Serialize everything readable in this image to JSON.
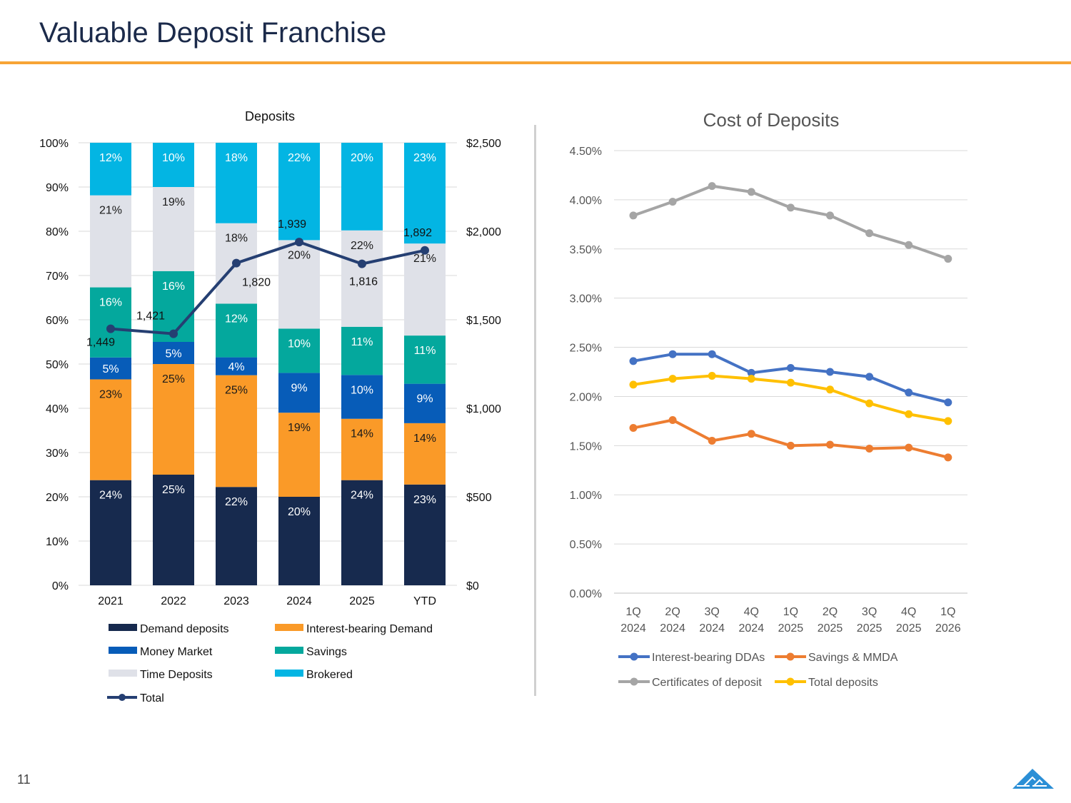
{
  "header": {
    "title": "Valuable Deposit Franchise",
    "page_number": "11"
  },
  "chart_data": [
    {
      "type": "bar",
      "stacked": "100%",
      "title": "Deposits",
      "categories": [
        "2021",
        "2022",
        "2023",
        "2024",
        "2025",
        "YTD"
      ],
      "y_left_ticks": [
        "0%",
        "10%",
        "20%",
        "30%",
        "40%",
        "50%",
        "60%",
        "70%",
        "80%",
        "90%",
        "100%"
      ],
      "y_right_ticks": [
        "$0",
        "$500",
        "$1,000",
        "$1,500",
        "$2,000",
        "$2,500"
      ],
      "ylim_left": [
        0,
        100
      ],
      "ylim_right": [
        0,
        2500
      ],
      "grid": true,
      "legend_position": "bottom",
      "series": [
        {
          "name": "Demand deposits",
          "color": "#172a4e",
          "label_color": "#ffffff",
          "values": [
            24,
            25,
            22,
            20,
            24,
            23
          ]
        },
        {
          "name": "Interest-bearing Demand",
          "color": "#fa9a28",
          "label_color": "#1a1a1a",
          "values": [
            23,
            25,
            25,
            19,
            14,
            14
          ]
        },
        {
          "name": "Money Market",
          "color": "#075cb8",
          "label_color": "#ffffff",
          "values": [
            5,
            5,
            4,
            9,
            10,
            9
          ]
        },
        {
          "name": "Savings",
          "color": "#04a89d",
          "label_color": "#ffffff",
          "values": [
            16,
            16,
            12,
            10,
            11,
            11
          ]
        },
        {
          "name": "Time Deposits",
          "color": "#dfe1e8",
          "label_color": "#1a1a1a",
          "values": [
            21,
            19,
            18,
            20,
            22,
            21
          ]
        },
        {
          "name": "Brokered",
          "color": "#03b5e3",
          "label_color": "#ffffff",
          "values": [
            12,
            10,
            18,
            22,
            20,
            23
          ]
        }
      ],
      "line": {
        "name": "Total",
        "color": "#253f72",
        "values": [
          1449,
          1421,
          1820,
          1939,
          1816,
          1892
        ],
        "labels": [
          "1,449",
          "1,421",
          "1,820",
          "1,939",
          "1,816",
          "1,892"
        ]
      }
    },
    {
      "type": "line",
      "title": "Cost of Deposits",
      "categories": [
        [
          "1Q",
          "2024"
        ],
        [
          "2Q",
          "2024"
        ],
        [
          "3Q",
          "2024"
        ],
        [
          "4Q",
          "2024"
        ],
        [
          "1Q",
          "2025"
        ],
        [
          "2Q",
          "2025"
        ],
        [
          "3Q",
          "2025"
        ],
        [
          "4Q",
          "2025"
        ],
        [
          "1Q",
          "2026"
        ]
      ],
      "y_ticks": [
        "0.00%",
        "0.50%",
        "1.00%",
        "1.50%",
        "2.00%",
        "2.50%",
        "3.00%",
        "3.50%",
        "4.00%",
        "4.50%"
      ],
      "ylim": [
        0,
        4.5
      ],
      "grid": true,
      "legend_position": "bottom",
      "series": [
        {
          "name": "Interest-bearing DDAs",
          "color": "#4472c4",
          "values": [
            2.36,
            2.43,
            2.43,
            2.24,
            2.29,
            2.25,
            2.2,
            2.04,
            1.94
          ]
        },
        {
          "name": "Savings & MMDA",
          "color": "#ed7d31",
          "values": [
            1.68,
            1.76,
            1.55,
            1.62,
            1.5,
            1.51,
            1.47,
            1.48,
            1.38
          ]
        },
        {
          "name": "Certificates of deposit",
          "color": "#a5a5a5",
          "values": [
            3.84,
            3.98,
            4.14,
            4.08,
            3.92,
            3.84,
            3.66,
            3.54,
            3.4
          ]
        },
        {
          "name": "Total deposits",
          "color": "#ffc000",
          "values": [
            2.12,
            2.18,
            2.21,
            2.18,
            2.14,
            2.07,
            1.93,
            1.82,
            1.75
          ]
        }
      ]
    }
  ]
}
